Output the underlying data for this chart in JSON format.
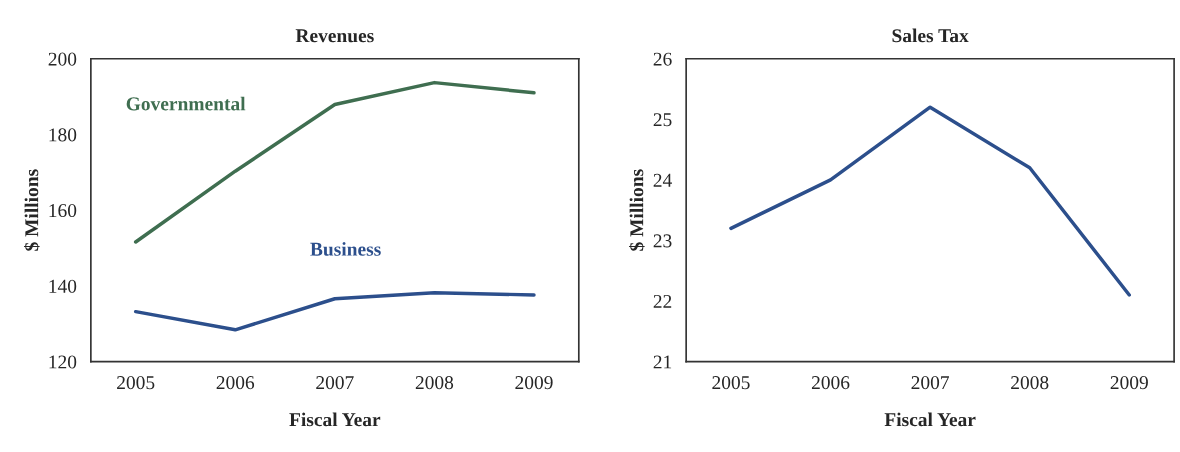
{
  "chart_data": [
    {
      "type": "line",
      "title": "Revenues",
      "xlabel": "Fiscal Year",
      "ylabel": "$ Millions",
      "categories": [
        "2005",
        "2006",
        "2007",
        "2008",
        "2009"
      ],
      "ylim": [
        120,
        200
      ],
      "yticks": [
        120,
        140,
        160,
        180,
        200
      ],
      "grid": false,
      "legend": false,
      "series": [
        {
          "name": "Governmental",
          "color": "#3f6e50",
          "values": [
            151.6,
            170.3,
            187.9,
            193.7,
            191
          ]
        },
        {
          "name": "Business",
          "color": "#2c4f8c",
          "values": [
            133.2,
            128.4,
            136.6,
            138.2,
            137.6
          ]
        }
      ]
    },
    {
      "type": "line",
      "title": "Sales Tax",
      "xlabel": "Fiscal Year",
      "ylabel": "$ Millions",
      "categories": [
        "2005",
        "2006",
        "2007",
        "2008",
        "2009"
      ],
      "ylim": [
        21,
        26
      ],
      "yticks": [
        21,
        22,
        23,
        24,
        25,
        26
      ],
      "grid": false,
      "legend": false,
      "series": [
        {
          "color": "#2c4f8c",
          "values": [
            23.2,
            24.0,
            25.2,
            24.2,
            22.1
          ]
        }
      ]
    }
  ]
}
